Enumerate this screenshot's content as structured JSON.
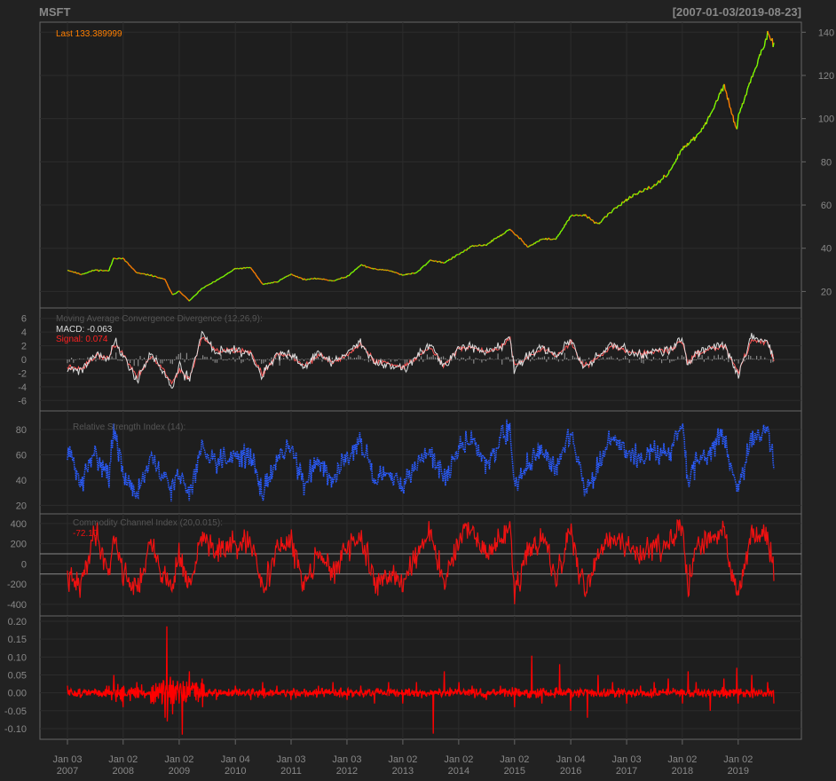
{
  "header": {
    "title": "MSFT",
    "date_range": "[2007-01-03/2019-08-23]"
  },
  "colors": {
    "background": "#222222",
    "panel_background": "#1e1e1e",
    "panel_border": "#666666",
    "grid": "#2c2c2c",
    "axis_text": "#888888",
    "price_up": "#7fff00",
    "price_down": "#ff7f00",
    "macd_line": "#dddddd",
    "signal_line": "#ff5555",
    "histogram": "#888888",
    "rsi_line": "#2a5cff",
    "cci_line": "#ee1111",
    "returns_line": "#ff0000",
    "last_label": "#ff7f00"
  },
  "x_axis": {
    "ticks": [
      {
        "date": "2007-01-03",
        "line1": "Jan 03",
        "line2": "2007"
      },
      {
        "date": "2008-01-02",
        "line1": "Jan 02",
        "line2": "2008"
      },
      {
        "date": "2009-01-02",
        "line1": "Jan 02",
        "line2": "2009"
      },
      {
        "date": "2010-01-04",
        "line1": "Jan 04",
        "line2": "2010"
      },
      {
        "date": "2011-01-03",
        "line1": "Jan 03",
        "line2": "2011"
      },
      {
        "date": "2012-01-03",
        "line1": "Jan 03",
        "line2": "2012"
      },
      {
        "date": "2013-01-02",
        "line1": "Jan 02",
        "line2": "2013"
      },
      {
        "date": "2014-01-02",
        "line1": "Jan 02",
        "line2": "2014"
      },
      {
        "date": "2015-01-02",
        "line1": "Jan 02",
        "line2": "2015"
      },
      {
        "date": "2016-01-04",
        "line1": "Jan 04",
        "line2": "2016"
      },
      {
        "date": "2017-01-03",
        "line1": "Jan 03",
        "line2": "2017"
      },
      {
        "date": "2018-01-02",
        "line1": "Jan 02",
        "line2": "2018"
      },
      {
        "date": "2019-01-02",
        "line1": "Jan 02",
        "line2": "2019"
      }
    ]
  },
  "chart_data": [
    {
      "type": "line",
      "panel": "price",
      "label": "Last 133.389999",
      "last_value": 133.389999,
      "ylim": [
        14,
        143
      ],
      "y_ticks": [
        20,
        40,
        60,
        80,
        100,
        120,
        140
      ],
      "y_axis_side": "right",
      "grid": true,
      "series": [
        {
          "x": [
            "2007-01-03",
            "2007-04-02",
            "2007-07-02",
            "2007-10-01",
            "2007-11-01",
            "2008-01-02",
            "2008-04-01",
            "2008-07-01",
            "2008-10-01",
            "2008-11-20",
            "2009-01-02",
            "2009-03-09",
            "2009-06-01",
            "2009-09-01",
            "2010-01-04",
            "2010-04-15",
            "2010-07-01",
            "2010-10-01",
            "2011-01-03",
            "2011-04-01",
            "2011-07-01",
            "2011-10-03",
            "2012-01-03",
            "2012-04-02",
            "2012-07-02",
            "2012-10-01",
            "2013-01-02",
            "2013-04-01",
            "2013-07-01",
            "2013-10-01",
            "2014-01-02",
            "2014-04-01",
            "2014-07-01",
            "2014-10-01",
            "2014-12-01",
            "2015-01-02",
            "2015-04-01",
            "2015-07-01",
            "2015-10-01",
            "2016-01-04",
            "2016-04-01",
            "2016-07-01",
            "2016-10-03",
            "2017-01-03",
            "2017-04-03",
            "2017-07-03",
            "2017-10-02",
            "2018-01-02",
            "2018-02-08",
            "2018-04-02",
            "2018-07-02",
            "2018-10-01",
            "2018-12-24",
            "2019-01-02",
            "2019-04-01",
            "2019-07-15",
            "2019-08-23"
          ],
          "values": [
            29.9,
            27.9,
            29.9,
            29.5,
            35.5,
            35.2,
            28.5,
            27.5,
            25.5,
            18.3,
            20.3,
            15.6,
            21.4,
            24.9,
            30.5,
            31.0,
            23.3,
            24.4,
            28.0,
            25.5,
            26.0,
            24.9,
            26.8,
            32.3,
            30.3,
            29.8,
            27.6,
            28.6,
            34.5,
            33.3,
            37.2,
            40.9,
            41.6,
            45.9,
            48.6,
            46.8,
            40.7,
            44.2,
            44.3,
            54.8,
            55.4,
            51.2,
            57.4,
            62.6,
            65.9,
            68.9,
            74.6,
            85.9,
            88.2,
            91.3,
            101.0,
            115.6,
            94.1,
            101.1,
            119.0,
            138.9,
            133.39
          ]
        }
      ]
    },
    {
      "type": "line",
      "panel": "macd",
      "title": "Moving Average Convergence Divergence (12,26,9):",
      "macd_label": "MACD: -0.063",
      "signal_label": "Signal: 0.074",
      "ylim": [
        -7,
        7
      ],
      "y_ticks": [
        -6,
        -4,
        -2,
        0,
        2,
        4,
        6
      ],
      "grid": true,
      "series": [
        {
          "name": "MACD",
          "x": [
            "2007-01-03",
            "2007-04-02",
            "2007-07-02",
            "2007-10-01",
            "2007-11-01",
            "2008-01-02",
            "2008-04-01",
            "2008-07-01",
            "2008-10-01",
            "2008-11-20",
            "2009-01-02",
            "2009-03-09",
            "2009-06-01",
            "2009-09-01",
            "2010-01-04",
            "2010-04-15",
            "2010-07-01",
            "2010-10-01",
            "2011-01-03",
            "2011-04-01",
            "2011-07-01",
            "2011-10-03",
            "2012-01-03",
            "2012-04-02",
            "2012-07-02",
            "2012-10-01",
            "2013-01-02",
            "2013-04-01",
            "2013-07-01",
            "2013-10-01",
            "2014-01-02",
            "2014-04-01",
            "2014-07-01",
            "2014-10-01",
            "2014-12-01",
            "2015-01-02",
            "2015-04-01",
            "2015-07-01",
            "2015-10-01",
            "2016-01-04",
            "2016-04-01",
            "2016-07-01",
            "2016-10-03",
            "2017-01-03",
            "2017-04-03",
            "2017-07-03",
            "2017-10-02",
            "2018-01-02",
            "2018-02-08",
            "2018-04-02",
            "2018-07-02",
            "2018-10-01",
            "2018-12-24",
            "2019-01-02",
            "2019-04-01",
            "2019-07-15",
            "2019-08-23"
          ],
          "values": [
            -1.2,
            -1.6,
            0.8,
            0.2,
            2.8,
            0.6,
            -3.0,
            0.8,
            -2.2,
            -4.2,
            -1.0,
            -3.2,
            4.0,
            1.0,
            1.5,
            0.8,
            -2.5,
            0.8,
            0.6,
            -1.2,
            0.9,
            -0.4,
            0.8,
            2.6,
            -0.6,
            -0.8,
            -1.3,
            0.4,
            2.0,
            -1.2,
            1.8,
            1.9,
            1.0,
            1.9,
            3.6,
            -1.6,
            0.4,
            1.8,
            0.4,
            2.8,
            -1.4,
            0.5,
            2.2,
            1.3,
            0.6,
            1.4,
            1.3,
            2.9,
            -0.8,
            1.0,
            1.8,
            2.2,
            -1.8,
            -2.4,
            3.2,
            2.6,
            -0.063
          ]
        },
        {
          "name": "Signal",
          "x": [
            "2007-01-03",
            "2007-04-02",
            "2007-07-02",
            "2007-10-01",
            "2007-11-01",
            "2008-01-02",
            "2008-04-01",
            "2008-07-01",
            "2008-10-01",
            "2008-11-20",
            "2009-01-02",
            "2009-03-09",
            "2009-06-01",
            "2009-09-01",
            "2010-01-04",
            "2010-04-15",
            "2010-07-01",
            "2010-10-01",
            "2011-01-03",
            "2011-04-01",
            "2011-07-01",
            "2011-10-03",
            "2012-01-03",
            "2012-04-02",
            "2012-07-02",
            "2012-10-01",
            "2013-01-02",
            "2013-04-01",
            "2013-07-01",
            "2013-10-01",
            "2014-01-02",
            "2014-04-01",
            "2014-07-01",
            "2014-10-01",
            "2014-12-01",
            "2015-01-02",
            "2015-04-01",
            "2015-07-01",
            "2015-10-01",
            "2016-01-04",
            "2016-04-01",
            "2016-07-01",
            "2016-10-03",
            "2017-01-03",
            "2017-04-03",
            "2017-07-03",
            "2017-10-02",
            "2018-01-02",
            "2018-02-08",
            "2018-04-02",
            "2018-07-02",
            "2018-10-01",
            "2018-12-24",
            "2019-01-02",
            "2019-04-01",
            "2019-07-15",
            "2019-08-23"
          ],
          "values": [
            -1.1,
            -1.5,
            0.5,
            0.3,
            2.2,
            0.9,
            -2.5,
            0.5,
            -1.8,
            -3.6,
            -1.5,
            -2.8,
            3.3,
            1.2,
            1.4,
            0.9,
            -2.1,
            0.5,
            0.6,
            -1.0,
            0.7,
            -0.3,
            0.6,
            2.3,
            -0.3,
            -0.6,
            -1.1,
            0.3,
            1.7,
            -0.9,
            1.6,
            1.8,
            1.1,
            1.7,
            3.2,
            -1.2,
            0.4,
            1.6,
            0.5,
            2.5,
            -1.1,
            0.4,
            2.0,
            1.3,
            0.7,
            1.3,
            1.3,
            2.6,
            -0.5,
            0.8,
            1.6,
            2.0,
            -1.5,
            -2.0,
            2.8,
            2.4,
            0.074
          ]
        }
      ]
    },
    {
      "type": "line",
      "panel": "rsi",
      "title": "Relative Strength Index (14):",
      "ylim": [
        16,
        92
      ],
      "y_ticks": [
        20,
        40,
        60,
        80
      ],
      "grid": true,
      "line_style": "dotted",
      "series": [
        {
          "x": [
            "2007-01-03",
            "2007-04-02",
            "2007-07-02",
            "2007-10-01",
            "2007-11-01",
            "2008-01-02",
            "2008-04-01",
            "2008-07-01",
            "2008-10-01",
            "2008-11-20",
            "2009-01-02",
            "2009-03-09",
            "2009-06-01",
            "2009-09-01",
            "2010-01-04",
            "2010-04-15",
            "2010-07-01",
            "2010-10-01",
            "2011-01-03",
            "2011-04-01",
            "2011-07-01",
            "2011-10-03",
            "2012-01-03",
            "2012-04-02",
            "2012-07-02",
            "2012-10-01",
            "2013-01-02",
            "2013-04-01",
            "2013-07-01",
            "2013-10-01",
            "2014-01-02",
            "2014-04-01",
            "2014-07-01",
            "2014-10-01",
            "2014-12-01",
            "2015-01-02",
            "2015-04-01",
            "2015-07-01",
            "2015-10-01",
            "2016-01-04",
            "2016-04-01",
            "2016-07-01",
            "2016-10-03",
            "2017-01-03",
            "2017-04-03",
            "2017-07-03",
            "2017-10-02",
            "2018-01-02",
            "2018-02-08",
            "2018-04-02",
            "2018-07-02",
            "2018-10-01",
            "2018-12-24",
            "2019-01-02",
            "2019-04-01",
            "2019-07-15",
            "2019-08-23"
          ],
          "values": [
            66,
            36,
            62,
            44,
            80,
            44,
            30,
            56,
            40,
            34,
            44,
            30,
            66,
            56,
            60,
            58,
            30,
            56,
            66,
            36,
            58,
            40,
            60,
            72,
            38,
            44,
            36,
            52,
            64,
            40,
            66,
            72,
            52,
            72,
            80,
            36,
            54,
            64,
            46,
            80,
            34,
            48,
            76,
            62,
            56,
            62,
            60,
            86,
            36,
            54,
            64,
            76,
            30,
            32,
            72,
            82,
            50
          ]
        }
      ]
    },
    {
      "type": "line",
      "panel": "cci",
      "title": "Commodity Channel Index (20,0.015):",
      "value_label": "-72.10",
      "ylim": [
        -480,
        460
      ],
      "y_ticks": [
        -400,
        -200,
        0,
        200,
        400
      ],
      "reference_lines": [
        -100,
        100
      ],
      "grid": true,
      "series": [
        {
          "x": [
            "2007-01-03",
            "2007-04-02",
            "2007-07-02",
            "2007-10-01",
            "2007-11-01",
            "2008-01-02",
            "2008-04-01",
            "2008-07-01",
            "2008-10-01",
            "2008-11-20",
            "2009-01-02",
            "2009-03-09",
            "2009-06-01",
            "2009-09-01",
            "2010-01-04",
            "2010-04-15",
            "2010-07-01",
            "2010-10-01",
            "2011-01-03",
            "2011-04-01",
            "2011-07-01",
            "2011-10-03",
            "2012-01-03",
            "2012-04-02",
            "2012-07-02",
            "2012-10-01",
            "2013-01-02",
            "2013-04-01",
            "2013-07-01",
            "2013-10-01",
            "2014-01-02",
            "2014-04-01",
            "2014-07-01",
            "2014-10-01",
            "2014-12-01",
            "2015-01-02",
            "2015-04-01",
            "2015-07-01",
            "2015-10-01",
            "2016-01-04",
            "2016-04-01",
            "2016-07-01",
            "2016-10-03",
            "2017-01-03",
            "2017-04-03",
            "2017-07-03",
            "2017-10-02",
            "2018-01-02",
            "2018-02-08",
            "2018-04-02",
            "2018-07-02",
            "2018-10-01",
            "2018-12-24",
            "2019-01-02",
            "2019-04-01",
            "2019-07-15",
            "2019-08-23"
          ],
          "values": [
            -150,
            -220,
            340,
            -100,
            300,
            -80,
            -260,
            200,
            -150,
            -220,
            120,
            -260,
            280,
            120,
            180,
            200,
            -250,
            150,
            200,
            -200,
            150,
            -120,
            160,
            250,
            -180,
            -100,
            -200,
            120,
            280,
            -200,
            240,
            320,
            100,
            220,
            400,
            -300,
            120,
            260,
            -150,
            300,
            -250,
            100,
            300,
            150,
            100,
            200,
            180,
            380,
            -280,
            150,
            250,
            300,
            -300,
            -250,
            280,
            250,
            -72.1
          ]
        }
      ]
    },
    {
      "type": "line",
      "panel": "returns",
      "ylim": [
        -0.12,
        0.205
      ],
      "y_ticks": [
        -0.1,
        -0.05,
        0.0,
        0.05,
        0.1,
        0.15,
        0.2
      ],
      "y_tick_labels": [
        "-0.10",
        "-0.05",
        "0.00",
        "0.05",
        "0.10",
        "0.15",
        "0.20"
      ],
      "grid": true,
      "series": [
        {
          "x": [
            "2007-01-03",
            "2007-04-02",
            "2007-07-02",
            "2007-10-01",
            "2007-11-01",
            "2008-01-02",
            "2008-04-01",
            "2008-07-01",
            "2008-10-01",
            "2008-10-13",
            "2008-10-16",
            "2008-11-20",
            "2009-01-02",
            "2009-01-22",
            "2009-03-09",
            "2009-06-01",
            "2009-09-01",
            "2010-01-04",
            "2010-04-15",
            "2010-07-01",
            "2010-10-01",
            "2011-01-03",
            "2011-04-01",
            "2011-07-01",
            "2011-10-03",
            "2012-01-03",
            "2012-04-02",
            "2012-07-02",
            "2012-10-01",
            "2013-01-02",
            "2013-04-01",
            "2013-07-19",
            "2013-10-01",
            "2014-01-02",
            "2014-04-01",
            "2014-07-01",
            "2014-10-01",
            "2014-12-01",
            "2015-01-02",
            "2015-04-24",
            "2015-07-01",
            "2015-10-23",
            "2016-01-04",
            "2016-04-22",
            "2016-07-01",
            "2016-10-03",
            "2017-01-03",
            "2017-04-03",
            "2017-07-03",
            "2017-10-02",
            "2018-01-02",
            "2018-02-08",
            "2018-04-02",
            "2018-07-02",
            "2018-10-01",
            "2018-12-24",
            "2019-01-02",
            "2019-04-01",
            "2019-07-15",
            "2019-08-23"
          ],
          "values": [
            0.02,
            -0.01,
            0.01,
            0.02,
            0.05,
            -0.04,
            0.03,
            -0.03,
            -0.07,
            0.186,
            -0.08,
            -0.06,
            -0.03,
            -0.117,
            0.06,
            0.04,
            -0.02,
            0.02,
            -0.02,
            0.03,
            0.02,
            -0.02,
            0.01,
            0.02,
            0.03,
            -0.02,
            0.02,
            -0.03,
            0.03,
            -0.03,
            0.03,
            -0.114,
            0.06,
            0.03,
            0.02,
            -0.02,
            0.02,
            0.01,
            -0.04,
            0.104,
            -0.03,
            0.08,
            -0.05,
            -0.07,
            0.05,
            0.03,
            -0.03,
            0.02,
            0.03,
            0.04,
            -0.03,
            0.06,
            0.03,
            -0.05,
            0.04,
            0.07,
            -0.03,
            0.05,
            0.03,
            -0.03
          ]
        }
      ]
    }
  ]
}
